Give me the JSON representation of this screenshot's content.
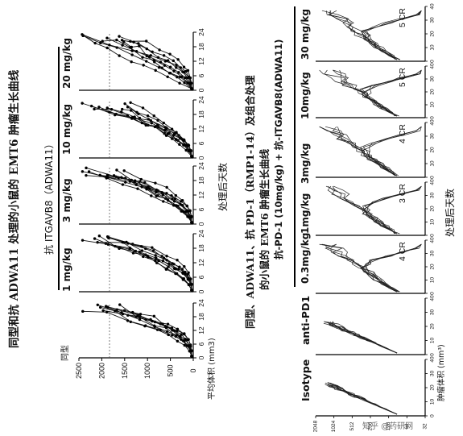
{
  "figure_top": {
    "title": "同型和抗 ADWA11 处理的小鼠的 EMT6 肿瘤生长曲线",
    "group_header": "抗 ITGAVB8（ADWA11）",
    "ylabel": "平均体积 (mm3)",
    "xlabel": "处理后天数",
    "panels": [
      {
        "label": "同型"
      },
      {
        "label": "1 mg/kg"
      },
      {
        "label": "3 mg/kg"
      },
      {
        "label": "10 mg/kg"
      },
      {
        "label": "20 mg/kg"
      }
    ],
    "y_ticks": [
      "0",
      "500",
      "1000",
      "1500",
      "2000",
      "2500"
    ],
    "x_ticks": [
      "0",
      "6",
      "12",
      "18",
      "24"
    ]
  },
  "figure_bottom": {
    "title_line1": "同型、ADWA11、抗 PD-1（RMP1-14）及组合处理",
    "title_line2": "的小鼠的 EMT6 肿瘤生长曲线",
    "group_header": "抗-PD-1 (10mg/kg) + 抗-ITGAVB8(ADWA11)",
    "ylabel": "肿瘤体积 (mm³)",
    "xlabel": "处理后天数",
    "panels": [
      {
        "label": "Isotype",
        "cr": ""
      },
      {
        "label": "anti-PD1",
        "cr": ""
      },
      {
        "label": "0.3mg/kg",
        "cr": "4 CR"
      },
      {
        "label": "1mg/kg",
        "cr": "3 CR"
      },
      {
        "label": "3mg/kg",
        "cr": "4 CR"
      },
      {
        "label": "10mg/kg",
        "cr": "5 CR"
      },
      {
        "label": "30 mg/kg",
        "cr": "5 CR"
      }
    ],
    "y_ticks": [
      "2048",
      "1024",
      "512",
      "256",
      "128",
      "64",
      "32"
    ],
    "x_ticks": [
      "0",
      "10",
      "20",
      "30",
      "40"
    ]
  },
  "watermark": "知乎 @药研网"
}
